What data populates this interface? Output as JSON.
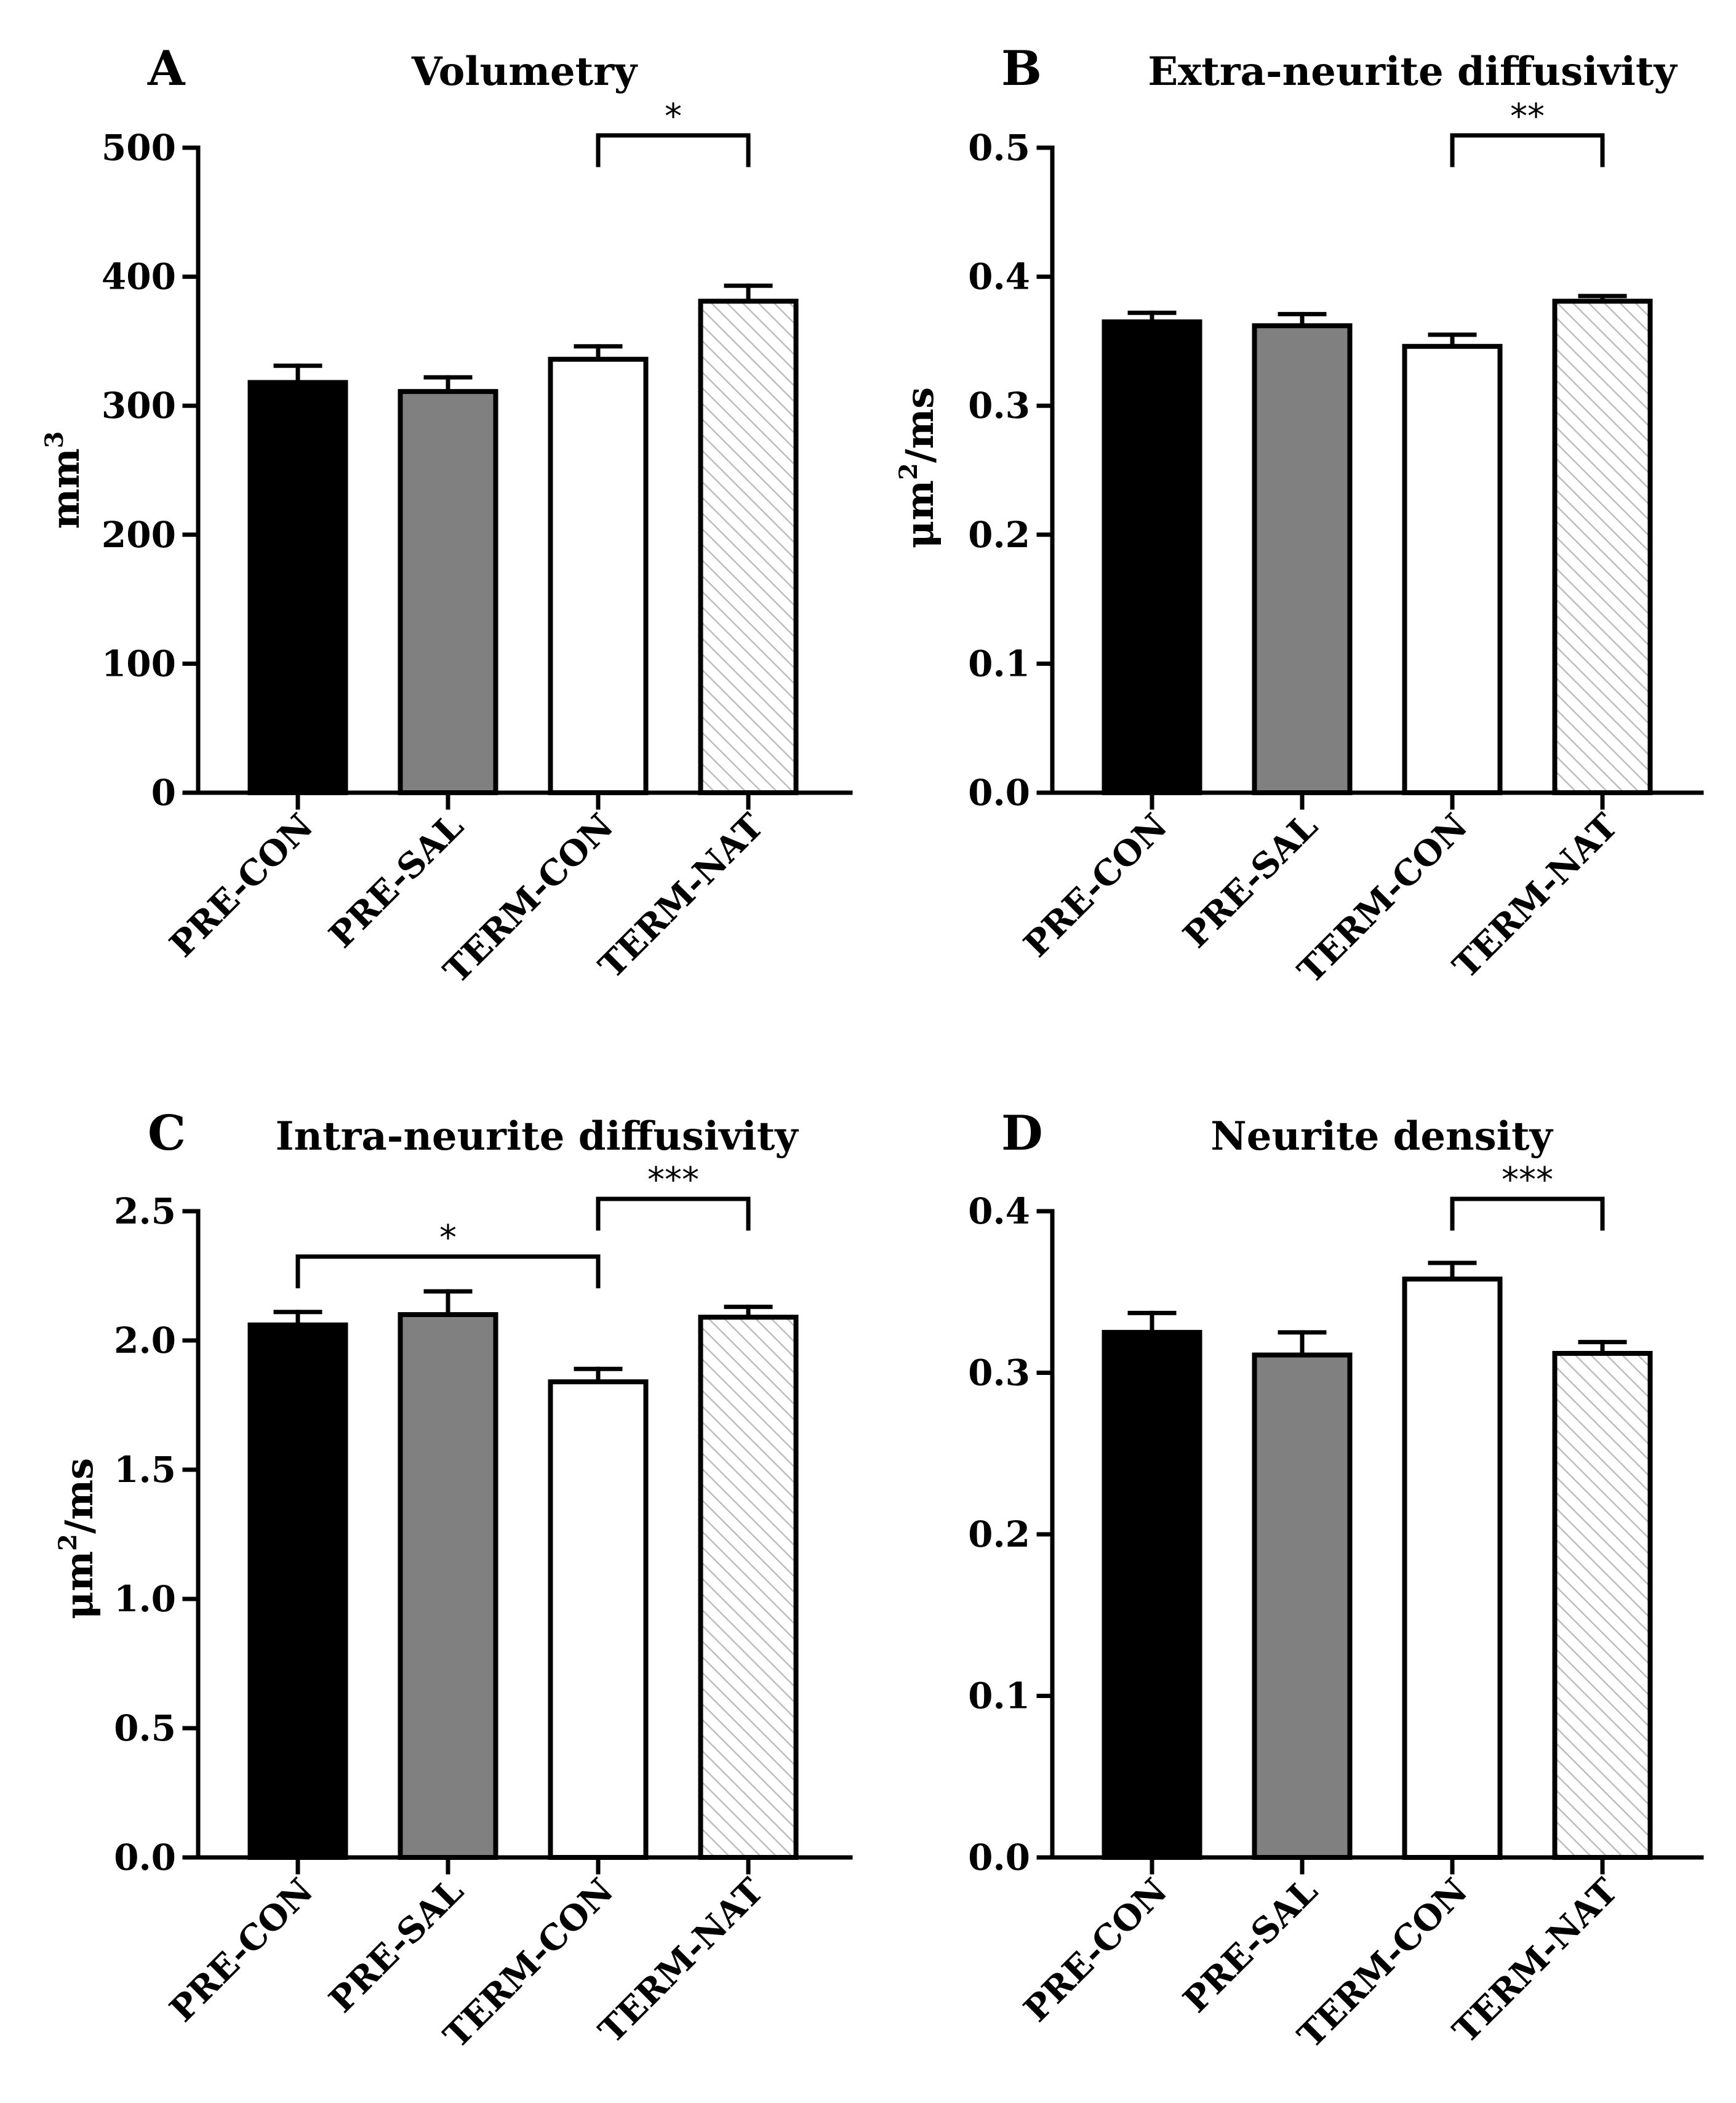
{
  "legend_colors": {
    "PRE-CON": "#000000",
    "PRE-SAL": "#808080",
    "TERM-CON": "#ffffff",
    "TERM-NAT": "hatch"
  },
  "panels": [
    {
      "letter": "A",
      "title": "Volumetry",
      "ylabel_main": "mm",
      "ylabel_sup": "3",
      "ylabel_rest": ""
    },
    {
      "letter": "B",
      "title": "Extra-neurite diffusivity",
      "ylabel_main": "μm",
      "ylabel_sup": "2",
      "ylabel_rest": "/ms"
    },
    {
      "letter": "C",
      "title": "Intra-neurite diffusivity",
      "ylabel_main": "μm",
      "ylabel_sup": "2",
      "ylabel_rest": "/ms"
    },
    {
      "letter": "D",
      "title": "Neurite density",
      "ylabel_main": "",
      "ylabel_sup": "",
      "ylabel_rest": ""
    }
  ],
  "chart_data": [
    {
      "type": "bar",
      "title": "Volumetry",
      "panel": "A",
      "xlabel": "",
      "ylabel": "mm3",
      "categories": [
        "PRE-CON",
        "PRE-SAL",
        "TERM-CON",
        "TERM-NAT"
      ],
      "values": [
        318,
        311,
        336,
        381
      ],
      "errors": [
        13,
        11,
        10,
        12
      ],
      "ylim": [
        0,
        500
      ],
      "yticks": [
        "0",
        "100",
        "200",
        "300",
        "400",
        "500"
      ],
      "significance": [
        {
          "from": 2,
          "to": 3,
          "label": "*"
        }
      ]
    },
    {
      "type": "bar",
      "title": "Extra-neurite diffusivity",
      "panel": "B",
      "xlabel": "",
      "ylabel": "μm2/ms",
      "categories": [
        "PRE-CON",
        "PRE-SAL",
        "TERM-CON",
        "TERM-NAT"
      ],
      "values": [
        0.365,
        0.362,
        0.346,
        0.381
      ],
      "errors": [
        0.007,
        0.009,
        0.009,
        0.004
      ],
      "ylim": [
        0,
        0.5
      ],
      "yticks": [
        "0.0",
        "0.1",
        "0.2",
        "0.3",
        "0.4",
        "0.5"
      ],
      "significance": [
        {
          "from": 2,
          "to": 3,
          "label": "**"
        }
      ]
    },
    {
      "type": "bar",
      "title": "Intra-neurite diffusivity",
      "panel": "C",
      "xlabel": "",
      "ylabel": "μm2/ms",
      "categories": [
        "PRE-CON",
        "PRE-SAL",
        "TERM-CON",
        "TERM-NAT"
      ],
      "values": [
        2.06,
        2.1,
        1.84,
        2.09
      ],
      "errors": [
        0.05,
        0.09,
        0.05,
        0.04
      ],
      "ylim": [
        0,
        2.5
      ],
      "yticks": [
        "0.0",
        "0.5",
        "1.0",
        "1.5",
        "2.0",
        "2.5"
      ],
      "significance": [
        {
          "from": 0,
          "to": 2,
          "label": "*"
        },
        {
          "from": 2,
          "to": 3,
          "label": "***"
        }
      ]
    },
    {
      "type": "bar",
      "title": "Neurite density",
      "panel": "D",
      "xlabel": "",
      "ylabel": "",
      "categories": [
        "PRE-CON",
        "PRE-SAL",
        "TERM-CON",
        "TERM-NAT"
      ],
      "values": [
        0.325,
        0.311,
        0.358,
        0.312
      ],
      "errors": [
        0.012,
        0.014,
        0.01,
        0.007
      ],
      "ylim": [
        0,
        0.4
      ],
      "yticks": [
        "0.0",
        "0.1",
        "0.2",
        "0.3",
        "0.4"
      ],
      "significance": [
        {
          "from": 2,
          "to": 3,
          "label": "***"
        }
      ]
    }
  ]
}
